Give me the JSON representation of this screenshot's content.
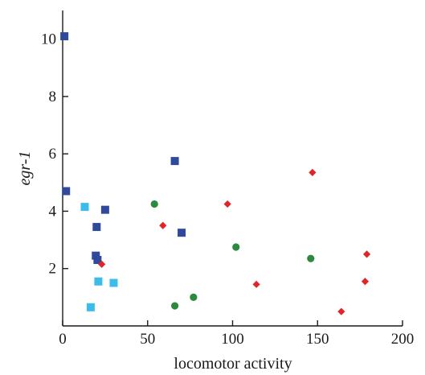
{
  "chart_data": {
    "type": "scatter",
    "title": "",
    "xlabel": "locomotor activity",
    "ylabel": "egr-1",
    "xlim": [
      0,
      200
    ],
    "ylim": [
      0,
      11
    ],
    "xticks": [
      0,
      50,
      100,
      150,
      200
    ],
    "yticks": [
      2,
      4,
      6,
      8,
      10
    ],
    "grid": false,
    "legend": "none",
    "series": [
      {
        "marker": "square",
        "color": "#2f4a9a",
        "points": [
          {
            "x": 1,
            "y": 10.1
          },
          {
            "x": 2,
            "y": 4.7
          },
          {
            "x": 20,
            "y": 3.45
          },
          {
            "x": 25,
            "y": 4.05
          },
          {
            "x": 19.5,
            "y": 2.45
          },
          {
            "x": 20.5,
            "y": 2.3
          },
          {
            "x": 66,
            "y": 5.75
          },
          {
            "x": 70,
            "y": 3.25
          }
        ]
      },
      {
        "marker": "square",
        "color": "#3bbcea",
        "points": [
          {
            "x": 13,
            "y": 4.15
          },
          {
            "x": 21,
            "y": 1.55
          },
          {
            "x": 30,
            "y": 1.5
          },
          {
            "x": 16.5,
            "y": 0.65
          }
        ]
      },
      {
        "marker": "circle",
        "color": "#2a8a3e",
        "points": [
          {
            "x": 54,
            "y": 4.25
          },
          {
            "x": 102,
            "y": 2.75
          },
          {
            "x": 146,
            "y": 2.35
          },
          {
            "x": 66,
            "y": 0.7
          },
          {
            "x": 77,
            "y": 1.0
          }
        ]
      },
      {
        "marker": "diamond",
        "color": "#e0252a",
        "points": [
          {
            "x": 59,
            "y": 3.5
          },
          {
            "x": 97,
            "y": 4.25
          },
          {
            "x": 147,
            "y": 5.35
          },
          {
            "x": 23,
            "y": 2.15
          },
          {
            "x": 114,
            "y": 1.45
          },
          {
            "x": 179,
            "y": 2.5
          },
          {
            "x": 178,
            "y": 1.55
          },
          {
            "x": 164,
            "y": 0.5
          }
        ]
      }
    ]
  }
}
